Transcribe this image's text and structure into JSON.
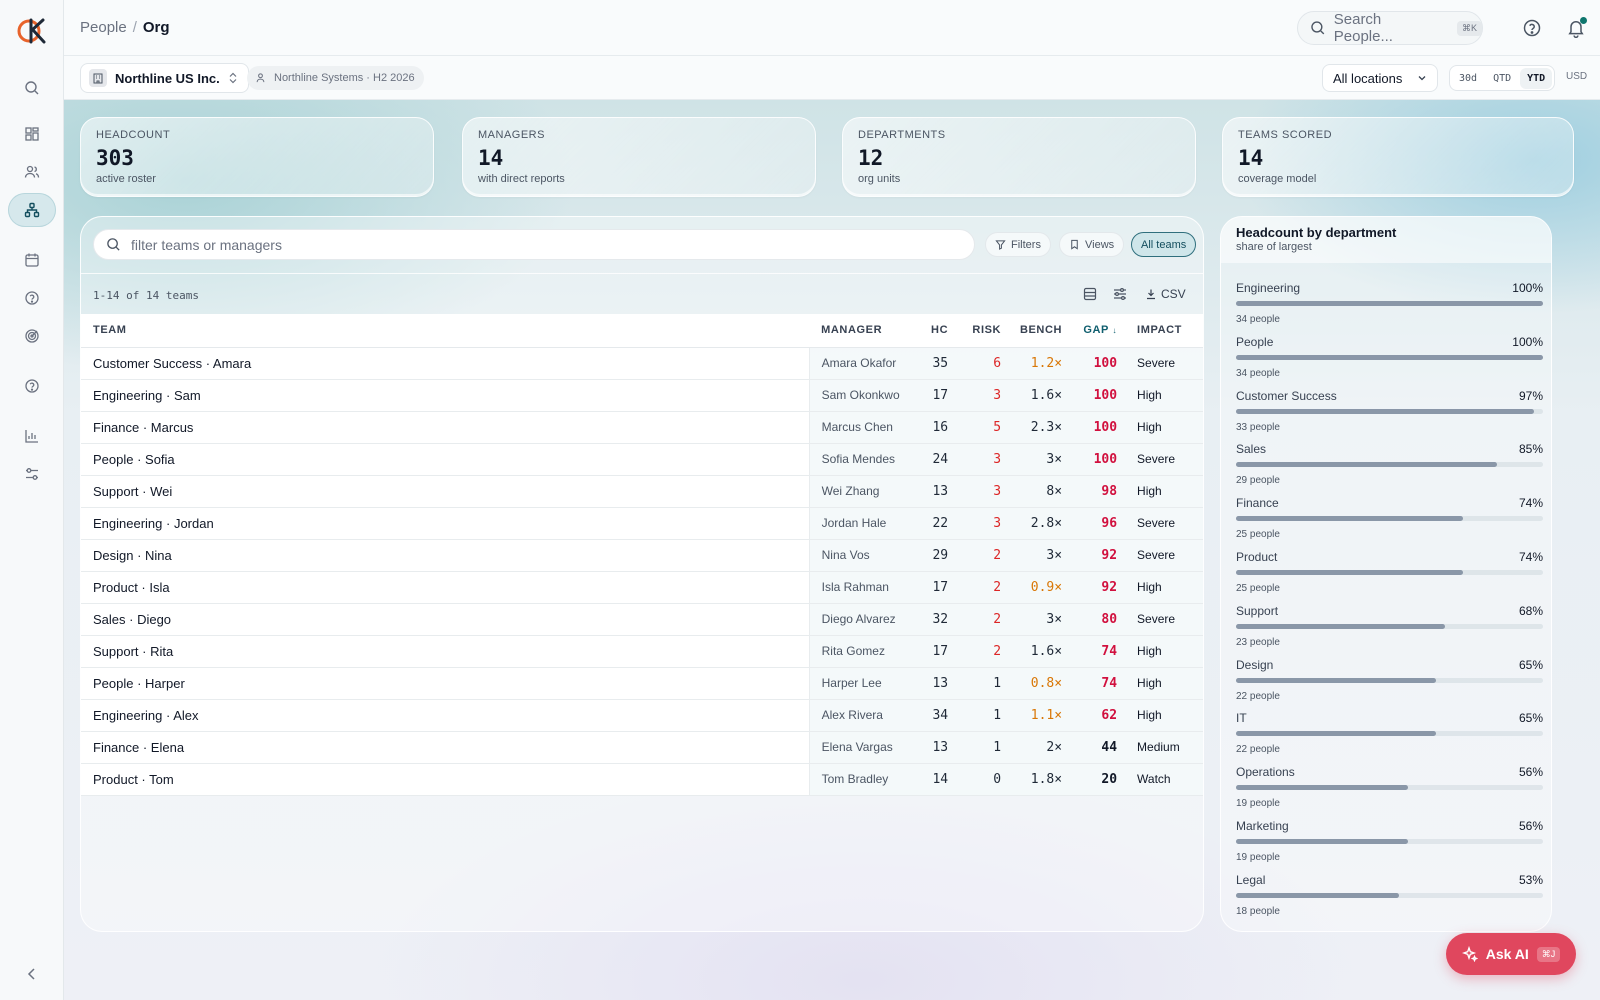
{
  "header": {
    "breadcrumb": [
      "People",
      "Org"
    ],
    "search_placeholder": "Search People...",
    "search_kbd": "⌘K"
  },
  "context": {
    "company": "Northline US Inc.",
    "cycle": "Northline Systems · H2 2026",
    "location": "All locations",
    "periods": [
      "30d",
      "QTD",
      "YTD"
    ],
    "active_period": "YTD",
    "currency": "USD"
  },
  "kpis": [
    {
      "label": "HEADCOUNT",
      "value": "303",
      "sub": "active roster"
    },
    {
      "label": "MANAGERS",
      "value": "14",
      "sub": "with direct reports"
    },
    {
      "label": "DEPARTMENTS",
      "value": "12",
      "sub": "org units"
    },
    {
      "label": "TEAMS SCORED",
      "value": "14",
      "sub": "coverage model"
    }
  ],
  "table_panel": {
    "filter_placeholder": "filter teams or managers",
    "filters_label": "Filters",
    "views_label": "Views",
    "all_teams_label": "All teams",
    "count_text": "1-14 of 14 teams",
    "csv_label": "CSV",
    "columns": [
      "TEAM",
      "MANAGER",
      "HC",
      "RISK",
      "BENCH",
      "GAP",
      "IMPACT"
    ],
    "sort_indicator": "↓",
    "rows": [
      {
        "team": "Customer Success · Amara",
        "manager": "Amara Okafor",
        "hc": "35",
        "risk": "6",
        "bench": "1.2×",
        "gap": "100",
        "impact": "Severe"
      },
      {
        "team": "Engineering · Sam",
        "manager": "Sam Okonkwo",
        "hc": "17",
        "risk": "3",
        "bench": "1.6×",
        "gap": "100",
        "impact": "High"
      },
      {
        "team": "Finance · Marcus",
        "manager": "Marcus Chen",
        "hc": "16",
        "risk": "5",
        "bench": "2.3×",
        "gap": "100",
        "impact": "High"
      },
      {
        "team": "People · Sofia",
        "manager": "Sofia Mendes",
        "hc": "24",
        "risk": "3",
        "bench": "3×",
        "gap": "100",
        "impact": "Severe"
      },
      {
        "team": "Support · Wei",
        "manager": "Wei Zhang",
        "hc": "13",
        "risk": "3",
        "bench": "8×",
        "gap": "98",
        "impact": "High"
      },
      {
        "team": "Engineering · Jordan",
        "manager": "Jordan Hale",
        "hc": "22",
        "risk": "3",
        "bench": "2.8×",
        "gap": "96",
        "impact": "Severe"
      },
      {
        "team": "Design · Nina",
        "manager": "Nina Vos",
        "hc": "29",
        "risk": "2",
        "bench": "3×",
        "gap": "92",
        "impact": "Severe"
      },
      {
        "team": "Product · Isla",
        "manager": "Isla Rahman",
        "hc": "17",
        "risk": "2",
        "bench": "0.9×",
        "gap": "92",
        "impact": "High"
      },
      {
        "team": "Sales · Diego",
        "manager": "Diego Alvarez",
        "hc": "32",
        "risk": "2",
        "bench": "3×",
        "gap": "80",
        "impact": "Severe"
      },
      {
        "team": "Support · Rita",
        "manager": "Rita Gomez",
        "hc": "17",
        "risk": "2",
        "bench": "1.6×",
        "gap": "74",
        "impact": "High"
      },
      {
        "team": "People · Harper",
        "manager": "Harper Lee",
        "hc": "13",
        "risk": "1",
        "bench": "0.8×",
        "gap": "74",
        "impact": "High"
      },
      {
        "team": "Engineering · Alex",
        "manager": "Alex Rivera",
        "hc": "34",
        "risk": "1",
        "bench": "1.1×",
        "gap": "62",
        "impact": "High"
      },
      {
        "team": "Finance · Elena",
        "manager": "Elena Vargas",
        "hc": "13",
        "risk": "1",
        "bench": "2×",
        "gap": "44",
        "impact": "Medium"
      },
      {
        "team": "Product · Tom",
        "manager": "Tom Bradley",
        "hc": "14",
        "risk": "0",
        "bench": "1.8×",
        "gap": "20",
        "impact": "Watch"
      }
    ]
  },
  "dept_panel": {
    "title": "Headcount by department",
    "subtitle": "share of largest",
    "departments": [
      {
        "name": "Engineering",
        "pct": "100%",
        "share": 1.0,
        "people": "34 people"
      },
      {
        "name": "People",
        "pct": "100%",
        "share": 1.0,
        "people": "34 people"
      },
      {
        "name": "Customer Success",
        "pct": "97%",
        "share": 0.97,
        "people": "33 people"
      },
      {
        "name": "Sales",
        "pct": "85%",
        "share": 0.85,
        "people": "29 people"
      },
      {
        "name": "Finance",
        "pct": "74%",
        "share": 0.74,
        "people": "25 people"
      },
      {
        "name": "Product",
        "pct": "74%",
        "share": 0.74,
        "people": "25 people"
      },
      {
        "name": "Support",
        "pct": "68%",
        "share": 0.68,
        "people": "23 people"
      },
      {
        "name": "Design",
        "pct": "65%",
        "share": 0.65,
        "people": "22 people"
      },
      {
        "name": "IT",
        "pct": "65%",
        "share": 0.65,
        "people": "22 people"
      },
      {
        "name": "Operations",
        "pct": "56%",
        "share": 0.56,
        "people": "19 people"
      },
      {
        "name": "Marketing",
        "pct": "56%",
        "share": 0.56,
        "people": "19 people"
      },
      {
        "name": "Legal",
        "pct": "53%",
        "share": 0.53,
        "people": "18 people"
      }
    ]
  },
  "ask_ai": {
    "label": "Ask AI",
    "kbd": "⌘J"
  },
  "colors": {
    "accent": "#0f5e6e",
    "ask_ai": "#e0475e",
    "gap": "#d1103e",
    "risk": "#dc2626",
    "bench_low": "#d97706"
  }
}
